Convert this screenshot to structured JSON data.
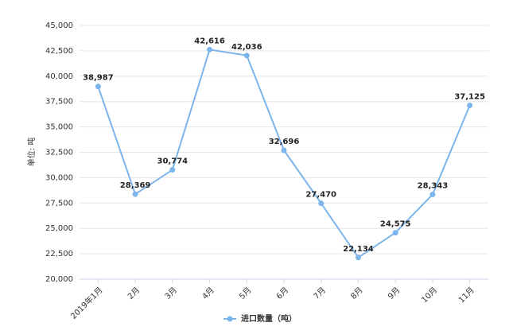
{
  "chart_data": {
    "type": "line",
    "y_label": "单位: 吨",
    "categories": [
      "2019年1月",
      "2月",
      "3月",
      "4月",
      "5月",
      "6月",
      "7月",
      "8月",
      "9月",
      "10月",
      "11月"
    ],
    "series": [
      {
        "name": "进口数量（吨）",
        "color": "#7cb5ec",
        "values": [
          38987,
          28369,
          30774,
          42616,
          42036,
          32696,
          27470,
          22134,
          24575,
          28343,
          37125
        ],
        "value_labels": [
          "38,987",
          "28,369",
          "30,774",
          "42,616",
          "42,036",
          "32,696",
          "27,470",
          "22,134",
          "24,575",
          "28,343",
          "37,125"
        ]
      }
    ],
    "ylim": [
      20000,
      45000
    ],
    "yticks": [
      {
        "value": 20000,
        "label": "20,000"
      },
      {
        "value": 22500,
        "label": "22,500"
      },
      {
        "value": 25000,
        "label": "25,000"
      },
      {
        "value": 27500,
        "label": "27,500"
      },
      {
        "value": 30000,
        "label": "30,000"
      },
      {
        "value": 32500,
        "label": "32,500"
      },
      {
        "value": 35000,
        "label": "35,000"
      },
      {
        "value": 37500,
        "label": "37,500"
      },
      {
        "value": 40000,
        "label": "40,000"
      },
      {
        "value": 42500,
        "label": "42,500"
      },
      {
        "value": 45000,
        "label": "45,000"
      }
    ],
    "grid": true,
    "legend": "bottom"
  }
}
